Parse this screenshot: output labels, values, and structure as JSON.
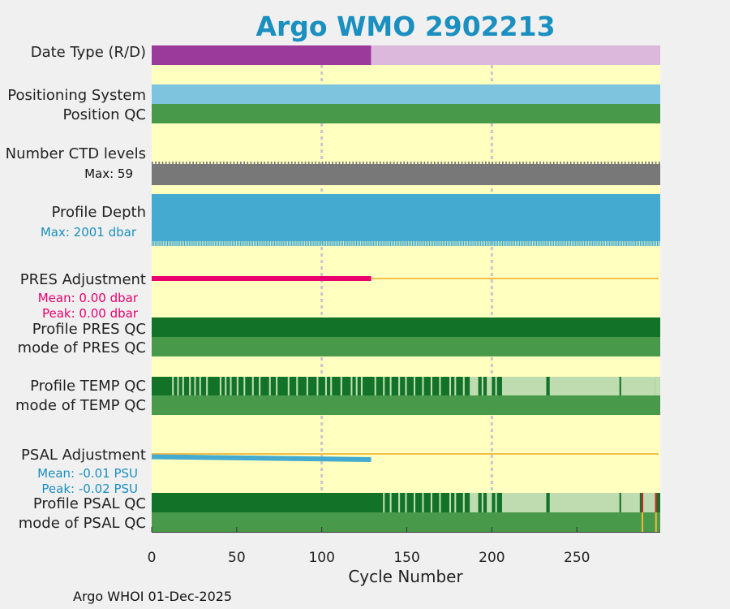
{
  "title": "Argo WMO 2902213",
  "footer": "Argo WHOI 01-Dec-2025",
  "colors": {
    "background": "#ffffc0",
    "real_time": "#9b3a9b",
    "delayed": "#dcb8dc",
    "positioning": "#7ec4de",
    "qc_good": "#48994a",
    "qc_dark": "#127228",
    "qc_light": "#bfdcb0",
    "ctd": "#787878",
    "depth": "#44aacf",
    "pres_adj": "#e8006e",
    "psal_adj": "#44aacf",
    "zero_line": "#f2be4c",
    "qc_bad": "#e0202a",
    "qc_probably_bad": "#f0b43c"
  },
  "labels": {
    "date_type": "Date Type (R/D)",
    "positioning": "Positioning System",
    "position_qc": "Position QC",
    "ctd_levels": "Number CTD levels",
    "ctd_max": "Max: 59",
    "profile_depth": "Profile Depth",
    "depth_max": "Max: 2001 dbar",
    "pres_adj": "PRES Adjustment",
    "pres_mean": "Mean: 0.00 dbar",
    "pres_peak": "Peak: 0.00 dbar",
    "profile_pres_qc": "Profile PRES QC",
    "mode_pres_qc": "mode of PRES QC",
    "profile_temp_qc": "Profile TEMP QC",
    "mode_temp_qc": "mode of TEMP QC",
    "psal_adj": "PSAL Adjustment",
    "psal_mean": "Mean: -0.01 PSU",
    "psal_peak": "Peak: -0.02 PSU",
    "profile_psal_qc": "Profile PSAL QC",
    "mode_psal_qc": "mode of PSAL QC"
  },
  "chart_data": {
    "type": "bar",
    "title": "Argo WMO 2902213",
    "xlabel": "Cycle Number",
    "xlim": [
      0,
      299
    ],
    "xticks": [
      0,
      50,
      100,
      150,
      200,
      250
    ],
    "xtick_labels": [
      "0",
      "50",
      "100",
      "150",
      "200",
      "250"
    ],
    "grid_x": [
      100,
      200
    ],
    "n_cycles": 299,
    "date_type": {
      "realtime_end": 129,
      "delayed_end": 299
    },
    "pres_adjustment_end_cycle": 129,
    "psal_adjustment": {
      "end_cycle": 129,
      "start_value": -0.01,
      "end_value": -0.02
    },
    "profile_temp_qc_light_ranges": [
      [
        188,
        192
      ],
      [
        198,
        200
      ],
      [
        207,
        232
      ],
      [
        235,
        275
      ],
      [
        277,
        296
      ],
      [
        297,
        299
      ]
    ],
    "profile_temp_qc_light_cycles": [
      13,
      16,
      19,
      23,
      26,
      29,
      33,
      41,
      44,
      47,
      51,
      55,
      60,
      64,
      70,
      74,
      81,
      86,
      92,
      98,
      103,
      106,
      112,
      118,
      121,
      124,
      132,
      137,
      141,
      146,
      150,
      155,
      160,
      165,
      170,
      176,
      179,
      184,
      195,
      203
    ],
    "profile_psal_qc_light_ranges": [
      [
        188,
        192
      ],
      [
        198,
        200
      ],
      [
        207,
        232
      ],
      [
        235,
        275
      ],
      [
        277,
        287
      ],
      [
        290,
        296
      ]
    ],
    "profile_psal_qc_light_cycles": [
      137,
      141,
      146,
      150,
      155,
      160,
      165,
      170,
      176,
      179,
      184,
      195,
      203
    ],
    "profile_psal_qc_bad_cycles": [
      289,
      297
    ],
    "mode_psal_qc_probably_bad_cycles": [
      289,
      297
    ]
  }
}
